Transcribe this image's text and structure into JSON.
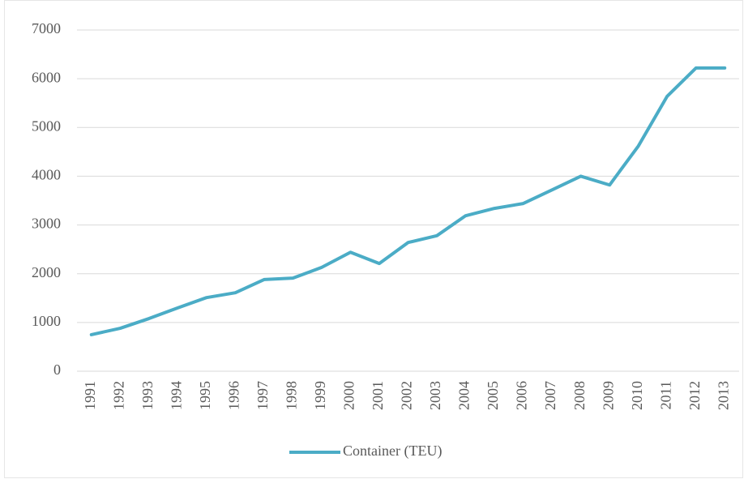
{
  "chart_data": {
    "type": "line",
    "categories": [
      "1991",
      "1992",
      "1993",
      "1994",
      "1995",
      "1996",
      "1997",
      "1998",
      "1999",
      "2000",
      "2001",
      "2002",
      "2003",
      "2004",
      "2005",
      "2006",
      "2007",
      "2008",
      "2009",
      "2010",
      "2011",
      "2012",
      "2013"
    ],
    "series": [
      {
        "name": "Container (TEU)",
        "color": "#4bacc6",
        "values": [
          750,
          880,
          1080,
          1300,
          1510,
          1610,
          1880,
          1910,
          2130,
          2440,
          2210,
          2640,
          2780,
          3190,
          3340,
          3440,
          3720,
          4000,
          3820,
          4620,
          5640,
          6220,
          6220
        ]
      }
    ],
    "ylim": [
      0,
      7000
    ],
    "yticks": [
      0,
      1000,
      2000,
      3000,
      4000,
      5000,
      6000,
      7000
    ],
    "grid": true,
    "legend": "bottom"
  }
}
